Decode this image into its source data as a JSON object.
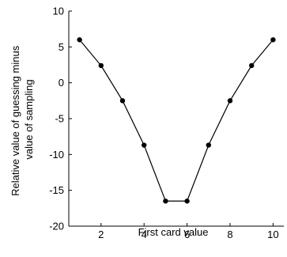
{
  "chart_data": {
    "type": "line",
    "title": "",
    "xlabel": "First card value",
    "ylabel_lines": [
      "Relative value of guessing minus",
      "value of sampling"
    ],
    "xlim": [
      0.5,
      10.5
    ],
    "ylim": [
      -20,
      10
    ],
    "xticks": [
      2,
      4,
      6,
      8,
      10
    ],
    "yticks": [
      10,
      5,
      0,
      -5,
      -10,
      -15,
      -20
    ],
    "grid": false,
    "series": [
      {
        "x": [
          1,
          2,
          3,
          4,
          5,
          6,
          7,
          8,
          9,
          10
        ],
        "values": [
          6,
          2.4,
          -2.5,
          -8.7,
          -16.5,
          -16.5,
          -8.7,
          -2.5,
          2.4,
          6
        ],
        "color": "#000000",
        "marker": "dot"
      }
    ]
  }
}
